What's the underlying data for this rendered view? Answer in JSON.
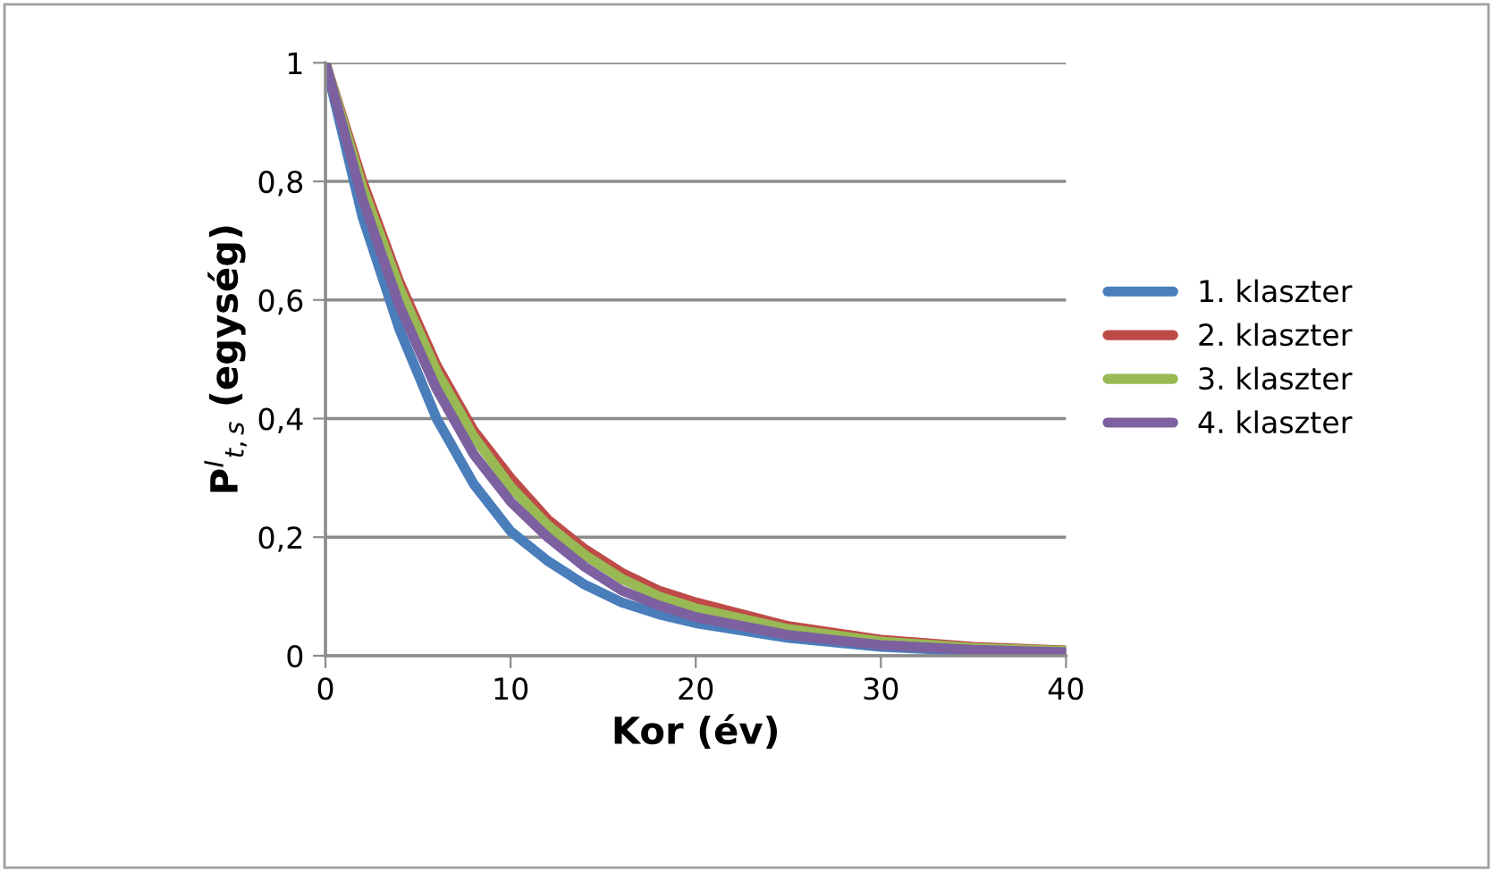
{
  "chart_data": {
    "type": "line",
    "xlabel": "Kor (év)",
    "ylabel": "P$^{I}$$_{t,s}$ (egység)",
    "x": [
      0,
      2,
      4,
      6,
      8,
      10,
      12,
      14,
      16,
      18,
      20,
      25,
      30,
      35,
      40
    ],
    "series": [
      {
        "name": "1. klaszter",
        "color": "#4a7ebb",
        "values": [
          1,
          0.74,
          0.55,
          0.4,
          0.29,
          0.21,
          0.16,
          0.12,
          0.09,
          0.07,
          0.055,
          0.03,
          0.015,
          0.008,
          0.004
        ]
      },
      {
        "name": "2. klaszter",
        "color": "#be4b48",
        "values": [
          1,
          0.8,
          0.63,
          0.49,
          0.38,
          0.3,
          0.23,
          0.18,
          0.14,
          0.11,
          0.09,
          0.05,
          0.027,
          0.015,
          0.009
        ]
      },
      {
        "name": "3. klaszter",
        "color": "#98b954",
        "values": [
          1,
          0.79,
          0.62,
          0.48,
          0.37,
          0.285,
          0.22,
          0.17,
          0.13,
          0.1,
          0.08,
          0.045,
          0.024,
          0.013,
          0.008
        ]
      },
      {
        "name": "4. klaszter",
        "color": "#7d60a0",
        "values": [
          1,
          0.77,
          0.59,
          0.45,
          0.34,
          0.26,
          0.2,
          0.15,
          0.11,
          0.085,
          0.065,
          0.035,
          0.018,
          0.01,
          0.006
        ]
      }
    ],
    "xlim": [
      0,
      40
    ],
    "xticks": [
      0,
      10,
      20,
      30,
      40
    ],
    "ylim": [
      0,
      1
    ],
    "yticks": [
      0,
      {
        "value": 0.2,
        "label": "0,2"
      },
      {
        "value": 0.4,
        "label": "0,4"
      },
      {
        "value": 0.6,
        "label": "0,6"
      },
      {
        "value": 0.8,
        "label": "0,8"
      },
      1
    ],
    "grid": "y",
    "legend": "right",
    "marker": "none",
    "line_style": "solid"
  }
}
